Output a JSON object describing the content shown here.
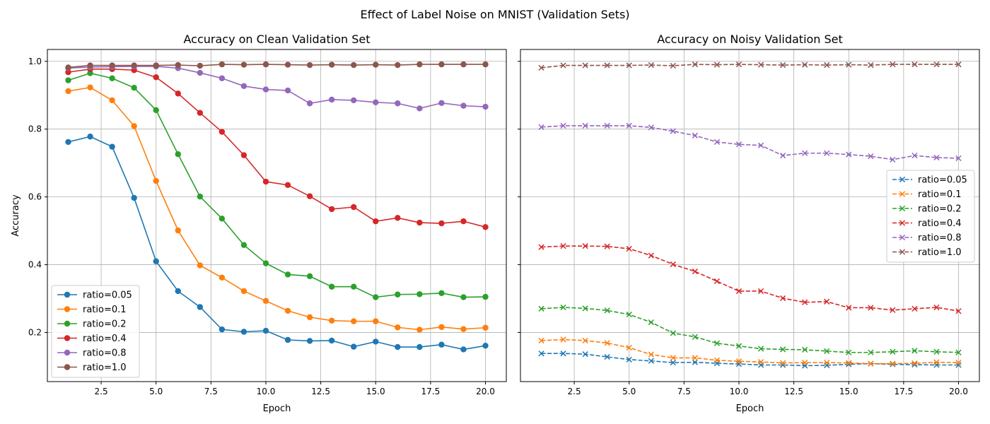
{
  "figure": {
    "suptitle": "Effect of Label Noise on MNIST (Validation Sets)"
  },
  "chart_data": [
    {
      "type": "line",
      "title": "Accuracy on Clean Validation Set",
      "xlabel": "Epoch",
      "ylabel": "Accuracy",
      "xlim": [
        0.05,
        20.95
      ],
      "ylim": [
        0.055,
        1.035
      ],
      "xticks": [
        2.5,
        5.0,
        7.5,
        10.0,
        12.5,
        15.0,
        17.5,
        20.0
      ],
      "yticks": [
        0.2,
        0.4,
        0.6,
        0.8,
        1.0
      ],
      "grid": true,
      "legend_position": "lower-left",
      "marker": "circle",
      "linestyle": "solid",
      "x": [
        1,
        2,
        3,
        4,
        5,
        6,
        7,
        8,
        9,
        10,
        11,
        12,
        13,
        14,
        15,
        16,
        17,
        18,
        19,
        20
      ],
      "series": [
        {
          "name": "ratio=0.05",
          "color": "#1f77b4",
          "values": [
            0.762,
            0.778,
            0.748,
            0.597,
            0.41,
            0.322,
            0.275,
            0.209,
            0.202,
            0.205,
            0.178,
            0.175,
            0.176,
            0.158,
            0.173,
            0.157,
            0.157,
            0.164,
            0.15,
            0.161
          ]
        },
        {
          "name": "ratio=0.1",
          "color": "#ff7f0e",
          "values": [
            0.912,
            0.923,
            0.885,
            0.809,
            0.647,
            0.501,
            0.398,
            0.362,
            0.322,
            0.293,
            0.264,
            0.245,
            0.235,
            0.233,
            0.233,
            0.215,
            0.208,
            0.216,
            0.21,
            0.214
          ]
        },
        {
          "name": "ratio=0.2",
          "color": "#2ca02c",
          "values": [
            0.944,
            0.965,
            0.95,
            0.922,
            0.856,
            0.726,
            0.601,
            0.536,
            0.458,
            0.404,
            0.371,
            0.366,
            0.335,
            0.335,
            0.304,
            0.312,
            0.313,
            0.316,
            0.304,
            0.305
          ]
        },
        {
          "name": "ratio=0.4",
          "color": "#d62728",
          "values": [
            0.968,
            0.977,
            0.977,
            0.974,
            0.953,
            0.905,
            0.848,
            0.792,
            0.723,
            0.645,
            0.635,
            0.602,
            0.564,
            0.57,
            0.528,
            0.538,
            0.524,
            0.522,
            0.528,
            0.511
          ]
        },
        {
          "name": "ratio=0.8",
          "color": "#9467bd",
          "values": [
            0.98,
            0.983,
            0.984,
            0.985,
            0.985,
            0.98,
            0.966,
            0.95,
            0.927,
            0.917,
            0.914,
            0.876,
            0.887,
            0.885,
            0.879,
            0.876,
            0.861,
            0.877,
            0.869,
            0.866
          ]
        },
        {
          "name": "ratio=1.0",
          "color": "#8c564b",
          "values": [
            0.982,
            0.988,
            0.988,
            0.988,
            0.988,
            0.989,
            0.987,
            0.991,
            0.99,
            0.991,
            0.99,
            0.989,
            0.99,
            0.989,
            0.99,
            0.989,
            0.991,
            0.991,
            0.991,
            0.991
          ]
        }
      ]
    },
    {
      "type": "line",
      "title": "Accuracy on Noisy Validation Set",
      "xlabel": "Epoch",
      "ylabel": "",
      "xlim": [
        0.05,
        20.95
      ],
      "ylim": [
        0.055,
        1.035
      ],
      "xticks": [
        2.5,
        5.0,
        7.5,
        10.0,
        12.5,
        15.0,
        17.5,
        20.0
      ],
      "yticks": [
        0.2,
        0.4,
        0.6,
        0.8,
        1.0
      ],
      "show_ytick_labels": false,
      "grid": true,
      "legend_position": "center-right",
      "marker": "x",
      "linestyle": "dashed",
      "x": [
        1,
        2,
        3,
        4,
        5,
        6,
        7,
        8,
        9,
        10,
        11,
        12,
        13,
        14,
        15,
        16,
        17,
        18,
        19,
        20
      ],
      "series": [
        {
          "name": "ratio=0.05",
          "color": "#1f77b4",
          "values": [
            0.138,
            0.138,
            0.136,
            0.128,
            0.12,
            0.116,
            0.111,
            0.112,
            0.109,
            0.107,
            0.104,
            0.104,
            0.102,
            0.103,
            0.106,
            0.108,
            0.106,
            0.105,
            0.104,
            0.104
          ]
        },
        {
          "name": "ratio=0.1",
          "color": "#ff7f0e",
          "values": [
            0.176,
            0.179,
            0.176,
            0.169,
            0.155,
            0.135,
            0.125,
            0.125,
            0.118,
            0.115,
            0.113,
            0.11,
            0.111,
            0.111,
            0.11,
            0.108,
            0.108,
            0.109,
            0.112,
            0.111
          ]
        },
        {
          "name": "ratio=0.2",
          "color": "#2ca02c",
          "values": [
            0.27,
            0.274,
            0.271,
            0.265,
            0.253,
            0.23,
            0.198,
            0.187,
            0.168,
            0.16,
            0.152,
            0.15,
            0.149,
            0.145,
            0.141,
            0.141,
            0.143,
            0.146,
            0.143,
            0.141
          ]
        },
        {
          "name": "ratio=0.4",
          "color": "#d62728",
          "values": [
            0.452,
            0.455,
            0.455,
            0.454,
            0.447,
            0.427,
            0.401,
            0.38,
            0.351,
            0.322,
            0.322,
            0.301,
            0.289,
            0.291,
            0.273,
            0.273,
            0.266,
            0.27,
            0.274,
            0.263
          ]
        },
        {
          "name": "ratio=0.8",
          "color": "#9467bd",
          "values": [
            0.806,
            0.81,
            0.81,
            0.81,
            0.81,
            0.805,
            0.794,
            0.781,
            0.762,
            0.755,
            0.752,
            0.722,
            0.729,
            0.729,
            0.725,
            0.72,
            0.71,
            0.722,
            0.716,
            0.714
          ]
        },
        {
          "name": "ratio=1.0",
          "color": "#8c564b",
          "values": [
            0.981,
            0.988,
            0.988,
            0.988,
            0.988,
            0.989,
            0.987,
            0.991,
            0.99,
            0.991,
            0.99,
            0.989,
            0.99,
            0.989,
            0.99,
            0.989,
            0.991,
            0.991,
            0.991,
            0.991
          ]
        }
      ]
    }
  ]
}
